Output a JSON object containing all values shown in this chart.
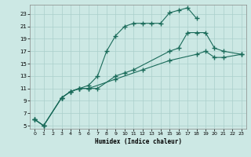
{
  "xlabel": "Humidex (Indice chaleur)",
  "background_color": "#cce8e4",
  "grid_color": "#aacfcb",
  "line_color": "#1a6b5a",
  "xlim": [
    -0.5,
    23.5
  ],
  "ylim": [
    4.5,
    24.5
  ],
  "xticks": [
    0,
    1,
    2,
    3,
    4,
    5,
    6,
    7,
    8,
    9,
    10,
    11,
    12,
    13,
    14,
    15,
    16,
    17,
    18,
    19,
    20,
    21,
    22,
    23
  ],
  "yticks": [
    5,
    7,
    9,
    11,
    13,
    15,
    17,
    19,
    21,
    23
  ],
  "line1_x": [
    0,
    1,
    3,
    4,
    5,
    6,
    7,
    8,
    9,
    10,
    11,
    12,
    13,
    14,
    15,
    16,
    17,
    18
  ],
  "line1_y": [
    6,
    5,
    9.5,
    10.5,
    11.0,
    11.5,
    13.0,
    17.0,
    19.5,
    21.0,
    21.5,
    21.5,
    21.5,
    21.5,
    23.2,
    23.6,
    24.0,
    22.3
  ],
  "line2_x": [
    0,
    1,
    3,
    4,
    5,
    6,
    7,
    9,
    10,
    11,
    15,
    16,
    17,
    18,
    19,
    20,
    21,
    23
  ],
  "line2_y": [
    6,
    5,
    9.5,
    10.5,
    11.0,
    11.0,
    11.0,
    13.0,
    13.5,
    14.0,
    17.0,
    17.5,
    20.0,
    20.0,
    20.0,
    17.5,
    17.0,
    16.5
  ],
  "line3_x": [
    0,
    1,
    3,
    4,
    5,
    6,
    9,
    12,
    15,
    18,
    19,
    20,
    21,
    23
  ],
  "line3_y": [
    6,
    5,
    9.5,
    10.5,
    11.0,
    11.0,
    12.5,
    14.0,
    15.5,
    16.5,
    17.0,
    16.0,
    16.0,
    16.5
  ]
}
